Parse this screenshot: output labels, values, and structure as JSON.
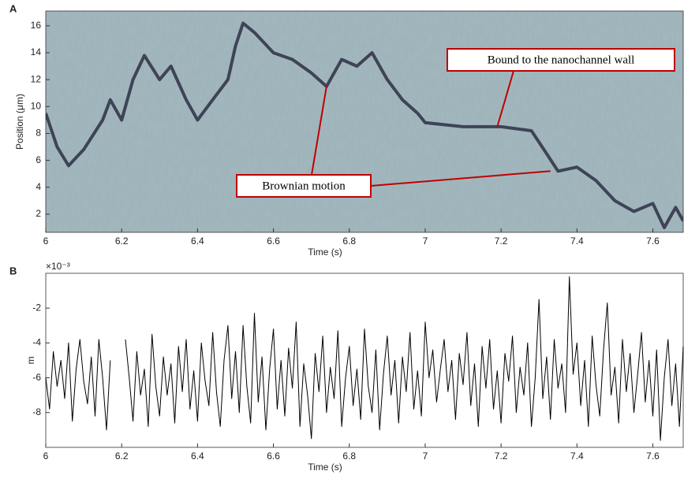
{
  "chart_data": [
    {
      "type": "kymograph",
      "panel_label": "A",
      "xlabel": "Time (s)",
      "ylabel": "Position (μm)",
      "xlim": [
        6,
        7.68
      ],
      "ylim": [
        0.65,
        17.1
      ],
      "xticks": [
        6,
        6.2,
        6.4,
        6.6,
        6.8,
        7,
        7.2,
        7.4,
        7.6
      ],
      "yticks": [
        2,
        4,
        6,
        8,
        10,
        12,
        14,
        16
      ],
      "series": [
        {
          "color": "#1e1e34",
          "x": [
            6.0,
            6.03,
            6.06,
            6.1,
            6.15,
            6.17,
            6.2,
            6.23,
            6.26,
            6.3,
            6.33,
            6.37,
            6.4,
            6.44,
            6.48,
            6.5,
            6.52,
            6.55,
            6.6,
            6.65,
            6.7,
            6.74,
            6.78,
            6.82,
            6.86,
            6.9,
            6.94,
            6.98,
            7.0,
            7.1,
            7.2,
            7.28,
            7.32,
            7.35,
            7.4,
            7.45,
            7.5,
            7.55,
            7.6,
            7.63,
            7.66,
            7.68
          ],
          "values": [
            9.5,
            7,
            5.6,
            6.8,
            9,
            10.5,
            9,
            12,
            13.8,
            12,
            13,
            10.5,
            9,
            10.5,
            12,
            14.5,
            16.2,
            15.5,
            14,
            13.5,
            12.5,
            11.5,
            13.5,
            13,
            14,
            12,
            10.5,
            9.5,
            8.8,
            8.5,
            8.5,
            8.2,
            6.5,
            5.2,
            5.5,
            4.5,
            3,
            2.2,
            2.8,
            1,
            2.5,
            1.5
          ]
        }
      ],
      "annotations": [
        {
          "text": "Bound to the nanochannel wall",
          "x": 7.19,
          "y": 8.5
        },
        {
          "text": "Brownian motion",
          "x": 6.74,
          "y": 11.5,
          "x2": 7.33,
          "y2": 5.2
        }
      ]
    },
    {
      "type": "line",
      "panel_label": "B",
      "xlabel": "Time (s)",
      "ylabel": "m",
      "y_scale_label": "×10⁻³",
      "xlim": [
        6,
        7.68
      ],
      "ylim": [
        -10,
        0
      ],
      "xticks": [
        6,
        6.2,
        6.4,
        6.6,
        6.8,
        7,
        7.2,
        7.4,
        7.6
      ],
      "yticks": [
        -8,
        -6,
        -4,
        -2
      ],
      "series": [
        {
          "color": "#000000",
          "x": [
            6.0,
            6.01,
            6.02,
            6.03,
            6.04,
            6.05,
            6.06,
            6.07,
            6.08,
            6.09,
            6.1,
            6.11,
            6.12,
            6.13,
            6.14,
            6.15,
            6.16,
            6.17,
            6.18,
            6.19,
            6.2,
            6.21,
            6.22,
            6.23,
            6.24,
            6.25,
            6.26,
            6.27,
            6.28,
            6.29,
            6.3,
            6.31,
            6.32,
            6.33,
            6.34,
            6.35,
            6.36,
            6.37,
            6.38,
            6.39,
            6.4,
            6.41,
            6.42,
            6.43,
            6.44,
            6.45,
            6.46,
            6.47,
            6.48,
            6.49,
            6.5,
            6.51,
            6.52,
            6.53,
            6.54,
            6.55,
            6.56,
            6.57,
            6.58,
            6.59,
            6.6,
            6.61,
            6.62,
            6.63,
            6.64,
            6.65,
            6.66,
            6.67,
            6.68,
            6.69,
            6.7,
            6.71,
            6.72,
            6.73,
            6.74,
            6.75,
            6.76,
            6.77,
            6.78,
            6.79,
            6.8,
            6.81,
            6.82,
            6.83,
            6.84,
            6.85,
            6.86,
            6.87,
            6.88,
            6.89,
            6.9,
            6.91,
            6.92,
            6.93,
            6.94,
            6.95,
            6.96,
            6.97,
            6.98,
            6.99,
            7.0,
            7.01,
            7.02,
            7.03,
            7.04,
            7.05,
            7.06,
            7.07,
            7.08,
            7.09,
            7.1,
            7.11,
            7.12,
            7.13,
            7.14,
            7.15,
            7.16,
            7.17,
            7.18,
            7.19,
            7.2,
            7.21,
            7.22,
            7.23,
            7.24,
            7.25,
            7.26,
            7.27,
            7.28,
            7.29,
            7.3,
            7.31,
            7.32,
            7.33,
            7.34,
            7.35,
            7.36,
            7.37,
            7.38,
            7.39,
            7.4,
            7.41,
            7.42,
            7.43,
            7.44,
            7.45,
            7.46,
            7.47,
            7.48,
            7.49,
            7.5,
            7.51,
            7.52,
            7.53,
            7.54,
            7.55,
            7.56,
            7.57,
            7.58,
            7.59,
            7.6,
            7.61,
            7.62,
            7.63,
            7.64,
            7.65,
            7.66,
            7.67,
            7.68
          ],
          "values": [
            -6,
            -7.8,
            -4.5,
            -6.5,
            -5,
            -7.2,
            -4,
            -8.5,
            -5.5,
            -3.8,
            -6.2,
            -7.5,
            -4.8,
            -8.2,
            -3.8,
            -6,
            -9,
            -5,
            null,
            null,
            null,
            -3.8,
            -6,
            -8.5,
            -4.5,
            -7,
            -5.5,
            -8.8,
            -3.5,
            -6.5,
            -8.2,
            -4.8,
            -7,
            -5.2,
            -8.6,
            -4.2,
            -6.8,
            -3.8,
            -7.8,
            -5.6,
            -8.5,
            -4,
            -6.2,
            -7.6,
            -3.4,
            -6.8,
            -8.8,
            -5,
            -3,
            -7.2,
            -4.5,
            -8,
            -3,
            -6.5,
            -8.6,
            -2.3,
            -7.4,
            -4.8,
            -9,
            -5.5,
            -3.2,
            -7.8,
            -5,
            -8.2,
            -4.3,
            -6.6,
            -2.8,
            -8.8,
            -5.2,
            -7,
            -9.5,
            -4.6,
            -6.8,
            -3.6,
            -8,
            -5.4,
            -7.2,
            -3.3,
            -8.8,
            -6,
            -4.2,
            -7.6,
            -5.5,
            -8.4,
            -3.2,
            -6.5,
            -8,
            -4.4,
            -9,
            -5.8,
            -3.6,
            -7,
            -5,
            -8.6,
            -4.8,
            -6.8,
            -3.4,
            -7.8,
            -5.6,
            -8.2,
            -2.8,
            -6,
            -4.4,
            -7.4,
            -5.5,
            -3.8,
            -6.8,
            -5,
            -8.4,
            -4.6,
            -6.4,
            -3.4,
            -7.6,
            -5.2,
            -8.8,
            -4.2,
            -6.6,
            -3.8,
            -7.8,
            -5.6,
            -8.6,
            -4.6,
            -6.2,
            -3.6,
            -8,
            -5.4,
            -7,
            -4,
            -8.8,
            -6,
            -1.5,
            -7.2,
            -4.8,
            -8.4,
            -3.8,
            -6.6,
            -5.2,
            -8,
            -0.2,
            -5.8,
            -4,
            -7.6,
            -5,
            -8.8,
            -3.6,
            -6.4,
            -8.2,
            -4.4,
            -1.7,
            -7,
            -5.4,
            -8.6,
            -3.8,
            -6.8,
            -4.6,
            -8,
            -5.8,
            -3.4,
            -7.4,
            -5,
            -8.2,
            -4.4,
            -9.6,
            -6,
            -3.8,
            -7.6,
            -5.2,
            -8.8,
            -4.2
          ]
        }
      ]
    }
  ]
}
